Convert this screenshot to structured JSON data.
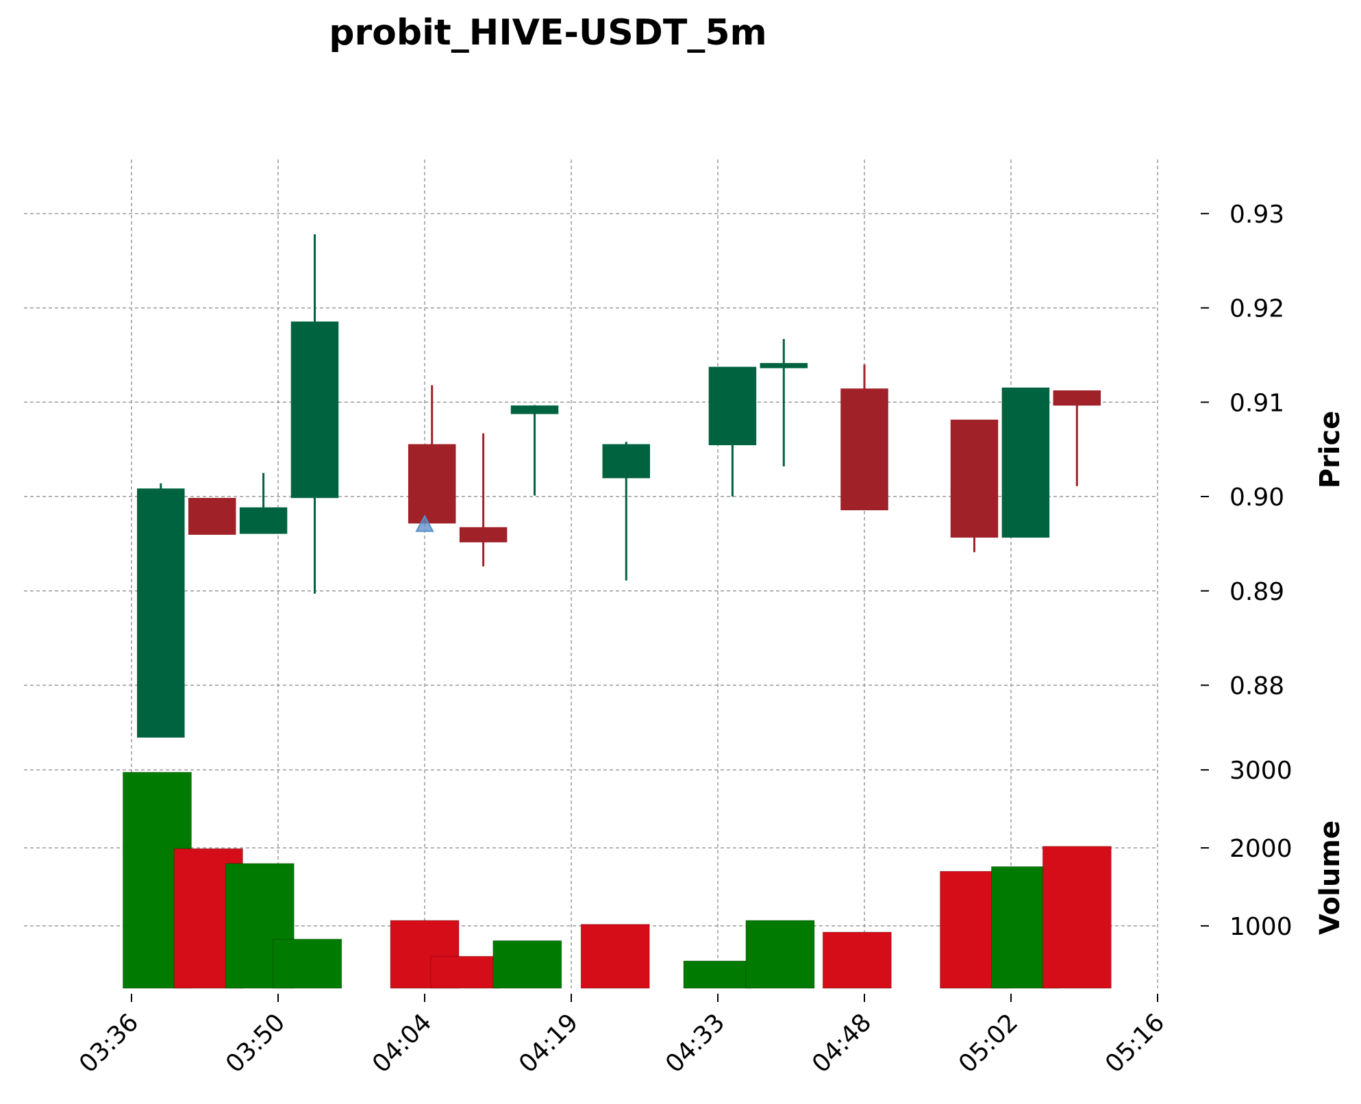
{
  "chart_data": {
    "type": "candlestick",
    "title": "probit_HIVE-USDT_5m",
    "x_tick_labels": [
      "03:36",
      "03:50",
      "04:04",
      "04:19",
      "04:33",
      "04:48",
      "05:02",
      "05:16"
    ],
    "price_axis": {
      "label": "Price",
      "ticks": [
        "0.88",
        "0.89",
        "0.90",
        "0.91",
        "0.92",
        "0.93"
      ],
      "ylim": [
        0.8735,
        0.935
      ]
    },
    "volume_axis": {
      "label": "Volume",
      "ticks": [
        "1000",
        "2000",
        "3000"
      ],
      "ylim": [
        200,
        3300
      ]
    },
    "grid": true,
    "colors": {
      "up": "#006340",
      "down": "#a02128",
      "volume_up": "#007a00",
      "volume_down": "#d50d18",
      "marker": "#5a8ec7"
    },
    "candles": [
      {
        "x": 0.4,
        "open": 0.8745,
        "high": 0.9014,
        "low": 0.8745,
        "close": 0.9008,
        "up": true
      },
      {
        "x": 1.1,
        "open": 0.8998,
        "high": 0.8998,
        "low": 0.896,
        "close": 0.896,
        "up": false
      },
      {
        "x": 1.8,
        "open": 0.8961,
        "high": 0.9025,
        "low": 0.8961,
        "close": 0.8988,
        "up": true
      },
      {
        "x": 2.5,
        "open": 0.8999,
        "high": 0.9278,
        "low": 0.8897,
        "close": 0.9185,
        "up": true
      },
      {
        "x": 4.1,
        "open": 0.9055,
        "high": 0.9118,
        "low": 0.8972,
        "close": 0.8972,
        "up": false
      },
      {
        "x": 4.8,
        "open": 0.8967,
        "high": 0.9067,
        "low": 0.8926,
        "close": 0.8952,
        "up": false
      },
      {
        "x": 5.5,
        "open": 0.9088,
        "high": 0.9097,
        "low": 0.9001,
        "close": 0.9096,
        "up": true
      },
      {
        "x": 6.75,
        "open": 0.902,
        "high": 0.9058,
        "low": 0.8911,
        "close": 0.9055,
        "up": true
      },
      {
        "x": 8.2,
        "open": 0.9055,
        "high": 0.9137,
        "low": 0.9,
        "close": 0.9137,
        "up": true
      },
      {
        "x": 8.9,
        "open": 0.9137,
        "high": 0.9167,
        "low": 0.9032,
        "close": 0.9141,
        "up": true
      },
      {
        "x": 10.0,
        "open": 0.9114,
        "high": 0.914,
        "low": 0.8986,
        "close": 0.8986,
        "up": false
      },
      {
        "x": 11.5,
        "open": 0.9081,
        "high": 0.9081,
        "low": 0.8941,
        "close": 0.8957,
        "up": false
      },
      {
        "x": 12.2,
        "open": 0.8957,
        "high": 0.9115,
        "low": 0.8957,
        "close": 0.9115,
        "up": true
      },
      {
        "x": 12.9,
        "open": 0.9112,
        "high": 0.9112,
        "low": 0.9011,
        "close": 0.9097,
        "up": false
      }
    ],
    "volume": [
      {
        "x": 0.35,
        "value": 2970,
        "up": true
      },
      {
        "x": 1.05,
        "value": 1990,
        "up": false
      },
      {
        "x": 1.75,
        "value": 1800,
        "up": true
      },
      {
        "x": 2.4,
        "value": 830,
        "up": true
      },
      {
        "x": 4.0,
        "value": 1070,
        "up": false
      },
      {
        "x": 4.55,
        "value": 610,
        "up": false
      },
      {
        "x": 5.4,
        "value": 810,
        "up": true
      },
      {
        "x": 6.6,
        "value": 1020,
        "up": false
      },
      {
        "x": 8.0,
        "value": 550,
        "up": true
      },
      {
        "x": 8.85,
        "value": 1070,
        "up": true
      },
      {
        "x": 9.9,
        "value": 920,
        "up": false
      },
      {
        "x": 11.5,
        "value": 1700,
        "up": false
      },
      {
        "x": 12.2,
        "value": 1760,
        "up": true
      },
      {
        "x": 12.9,
        "value": 2020,
        "up": false
      }
    ],
    "markers": [
      {
        "x": 4.0,
        "price": 0.8972,
        "shape": "triangle-up"
      }
    ]
  }
}
